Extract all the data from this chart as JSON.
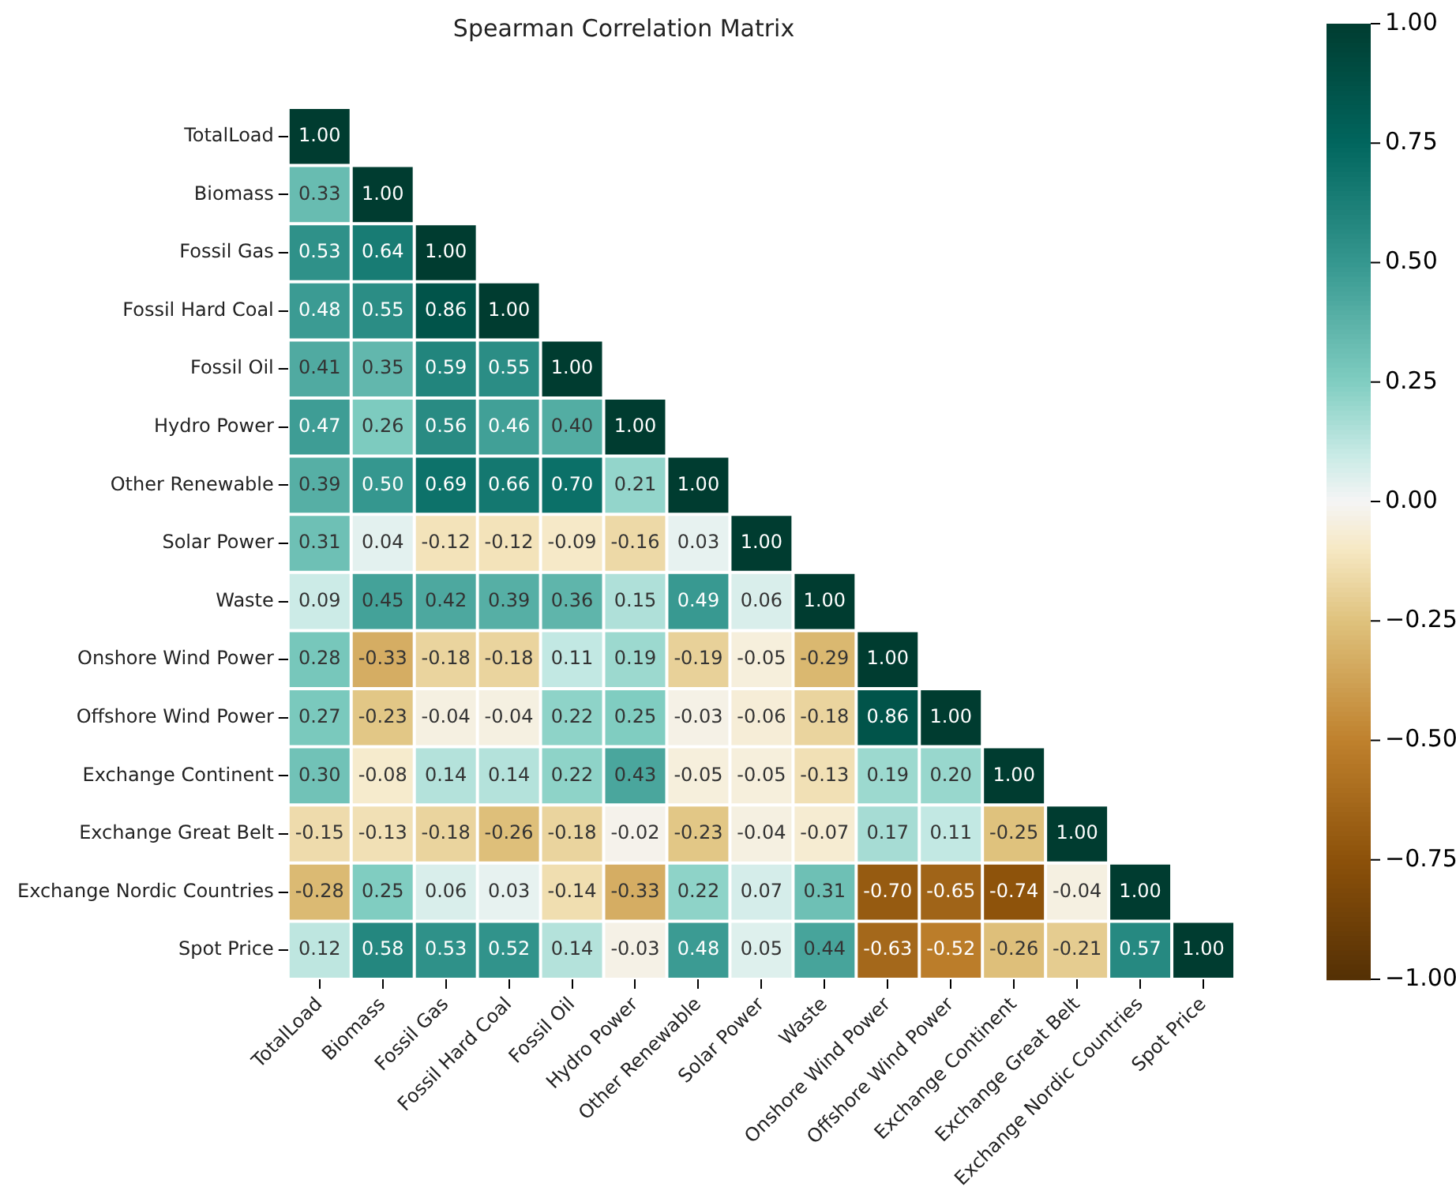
{
  "chart_data": {
    "type": "heatmap",
    "title": "Spearman Correlation Matrix",
    "categories": [
      "TotalLoad",
      "Biomass",
      "Fossil Gas",
      "Fossil Hard Coal",
      "Fossil Oil",
      "Hydro Power",
      "Other Renewable",
      "Solar Power",
      "Waste",
      "Onshore Wind Power",
      "Offshore Wind Power",
      "Exchange Continent",
      "Exchange Great Belt",
      "Exchange Nordic Countries",
      "Spot Price"
    ],
    "y_categories": [
      "TotalLoad",
      "Biomass",
      "Fossil Gas",
      "Fossil Hard Coal",
      "Fossil Oil",
      "Hydro Power",
      "Other Renewable",
      "Solar Power",
      "Waste",
      "Onshore Wind Power",
      "Offshore Wind Power",
      "Exchange Continent",
      "Exchange Great Belt",
      "Exchange Nordic Countries",
      "Spot Price"
    ],
    "cells": [
      [
        1,
        null,
        null,
        null,
        null,
        null,
        null,
        null,
        null,
        null,
        null,
        null,
        null,
        null,
        null
      ],
      [
        0.33,
        1,
        null,
        null,
        null,
        null,
        null,
        null,
        null,
        null,
        null,
        null,
        null,
        null,
        null
      ],
      [
        0.53,
        0.64,
        1,
        null,
        null,
        null,
        null,
        null,
        null,
        null,
        null,
        null,
        null,
        null,
        null
      ],
      [
        0.48,
        0.55,
        0.86,
        1,
        null,
        null,
        null,
        null,
        null,
        null,
        null,
        null,
        null,
        null,
        null
      ],
      [
        0.41,
        0.35,
        0.59,
        0.55,
        1,
        null,
        null,
        null,
        null,
        null,
        null,
        null,
        null,
        null,
        null
      ],
      [
        0.47,
        0.26,
        0.56,
        0.46,
        0.4,
        1,
        null,
        null,
        null,
        null,
        null,
        null,
        null,
        null,
        null
      ],
      [
        0.39,
        0.5,
        0.69,
        0.66,
        0.7,
        0.21,
        1,
        null,
        null,
        null,
        null,
        null,
        null,
        null,
        null
      ],
      [
        0.31,
        0.04,
        -0.12,
        -0.12,
        -0.09,
        -0.16,
        0.03,
        1,
        null,
        null,
        null,
        null,
        null,
        null,
        null
      ],
      [
        0.09,
        0.45,
        0.42,
        0.39,
        0.36,
        0.15,
        0.49,
        0.06,
        1,
        null,
        null,
        null,
        null,
        null,
        null
      ],
      [
        0.28,
        -0.33,
        -0.18,
        -0.18,
        0.11,
        0.19,
        -0.19,
        -0.05,
        -0.29,
        1,
        null,
        null,
        null,
        null,
        null
      ],
      [
        0.27,
        -0.23,
        -0.04,
        -0.04,
        0.22,
        0.25,
        -0.03,
        -0.06,
        -0.18,
        0.86,
        1,
        null,
        null,
        null,
        null
      ],
      [
        0.3,
        -0.08,
        0.14,
        0.14,
        0.22,
        0.43,
        -0.05,
        -0.05,
        -0.13,
        0.19,
        0.2,
        1,
        null,
        null,
        null
      ],
      [
        -0.15,
        -0.13,
        -0.18,
        -0.26,
        -0.18,
        -0.02,
        -0.23,
        -0.04,
        -0.07,
        0.17,
        0.11,
        -0.25,
        1,
        null,
        null
      ],
      [
        -0.28,
        0.25,
        0.06,
        0.03,
        -0.14,
        -0.33,
        0.22,
        0.07,
        0.31,
        -0.7,
        -0.65,
        -0.74,
        -0.04,
        1,
        null
      ],
      [
        0.12,
        0.58,
        0.53,
        0.52,
        0.14,
        -0.03,
        0.48,
        0.05,
        0.44,
        -0.63,
        -0.52,
        -0.26,
        -0.21,
        0.57,
        1
      ]
    ],
    "cell_labels": [
      [
        "1.00",
        null,
        null,
        null,
        null,
        null,
        null,
        null,
        null,
        null,
        null,
        null,
        null,
        null,
        null
      ],
      [
        "0.33",
        "1.00",
        null,
        null,
        null,
        null,
        null,
        null,
        null,
        null,
        null,
        null,
        null,
        null,
        null
      ],
      [
        "0.53",
        "0.64",
        "1.00",
        null,
        null,
        null,
        null,
        null,
        null,
        null,
        null,
        null,
        null,
        null,
        null
      ],
      [
        "0.48",
        "0.55",
        "0.86",
        "1.00",
        null,
        null,
        null,
        null,
        null,
        null,
        null,
        null,
        null,
        null,
        null
      ],
      [
        "0.41",
        "0.35",
        "0.59",
        "0.55",
        "1.00",
        null,
        null,
        null,
        null,
        null,
        null,
        null,
        null,
        null,
        null
      ],
      [
        "0.47",
        "0.26",
        "0.56",
        "0.46",
        "0.40",
        "1.00",
        null,
        null,
        null,
        null,
        null,
        null,
        null,
        null,
        null
      ],
      [
        "0.39",
        "0.50",
        "0.69",
        "0.66",
        "0.70",
        "0.21",
        "1.00",
        null,
        null,
        null,
        null,
        null,
        null,
        null,
        null
      ],
      [
        "0.31",
        "0.04",
        "-0.12",
        "-0.12",
        "-0.09",
        "-0.16",
        "0.03",
        "1.00",
        null,
        null,
        null,
        null,
        null,
        null,
        null
      ],
      [
        "0.09",
        "0.45",
        "0.42",
        "0.39",
        "0.36",
        "0.15",
        "0.49",
        "0.06",
        "1.00",
        null,
        null,
        null,
        null,
        null,
        null
      ],
      [
        "0.28",
        "-0.33",
        "-0.18",
        "-0.18",
        "0.11",
        "0.19",
        "-0.19",
        "-0.05",
        "-0.29",
        "1.00",
        null,
        null,
        null,
        null,
        null
      ],
      [
        "0.27",
        "-0.23",
        "-0.04",
        "-0.04",
        "0.22",
        "0.25",
        "-0.03",
        "-0.06",
        "-0.18",
        "0.86",
        "1.00",
        null,
        null,
        null,
        null
      ],
      [
        "0.30",
        "-0.08",
        "0.14",
        "0.14",
        "0.22",
        "0.43",
        "-0.05",
        "-0.05",
        "-0.13",
        "0.19",
        "0.20",
        "1.00",
        null,
        null,
        null
      ],
      [
        "-0.15",
        "-0.13",
        "-0.18",
        "-0.26",
        "-0.18",
        "-0.02",
        "-0.23",
        "-0.04",
        "-0.07",
        "0.17",
        "0.11",
        "-0.25",
        "1.00",
        null,
        null
      ],
      [
        "-0.28",
        "0.25",
        "0.06",
        "0.03",
        "-0.14",
        "-0.33",
        "0.22",
        "0.07",
        "0.31",
        "-0.70",
        "-0.65",
        "-0.74",
        "-0.04",
        "1.00",
        null
      ],
      [
        "0.12",
        "0.58",
        "0.53",
        "0.52",
        "0.14",
        "-0.03",
        "0.48",
        "0.05",
        "0.44",
        "-0.63",
        "-0.52",
        "-0.26",
        "-0.21",
        "0.57",
        "1.00"
      ]
    ],
    "clim": [
      -1,
      1
    ],
    "cticks": [
      {
        "value": -1,
        "label": "−1.00"
      },
      {
        "value": -0.75,
        "label": "−0.75"
      },
      {
        "value": -0.5,
        "label": "−0.50"
      },
      {
        "value": -0.25,
        "label": "−0.25"
      },
      {
        "value": 0,
        "label": "0.00"
      },
      {
        "value": 0.25,
        "label": "0.25"
      },
      {
        "value": 0.5,
        "label": "0.50"
      },
      {
        "value": 0.75,
        "label": "0.75"
      },
      {
        "value": 1,
        "label": "1.00"
      }
    ]
  }
}
